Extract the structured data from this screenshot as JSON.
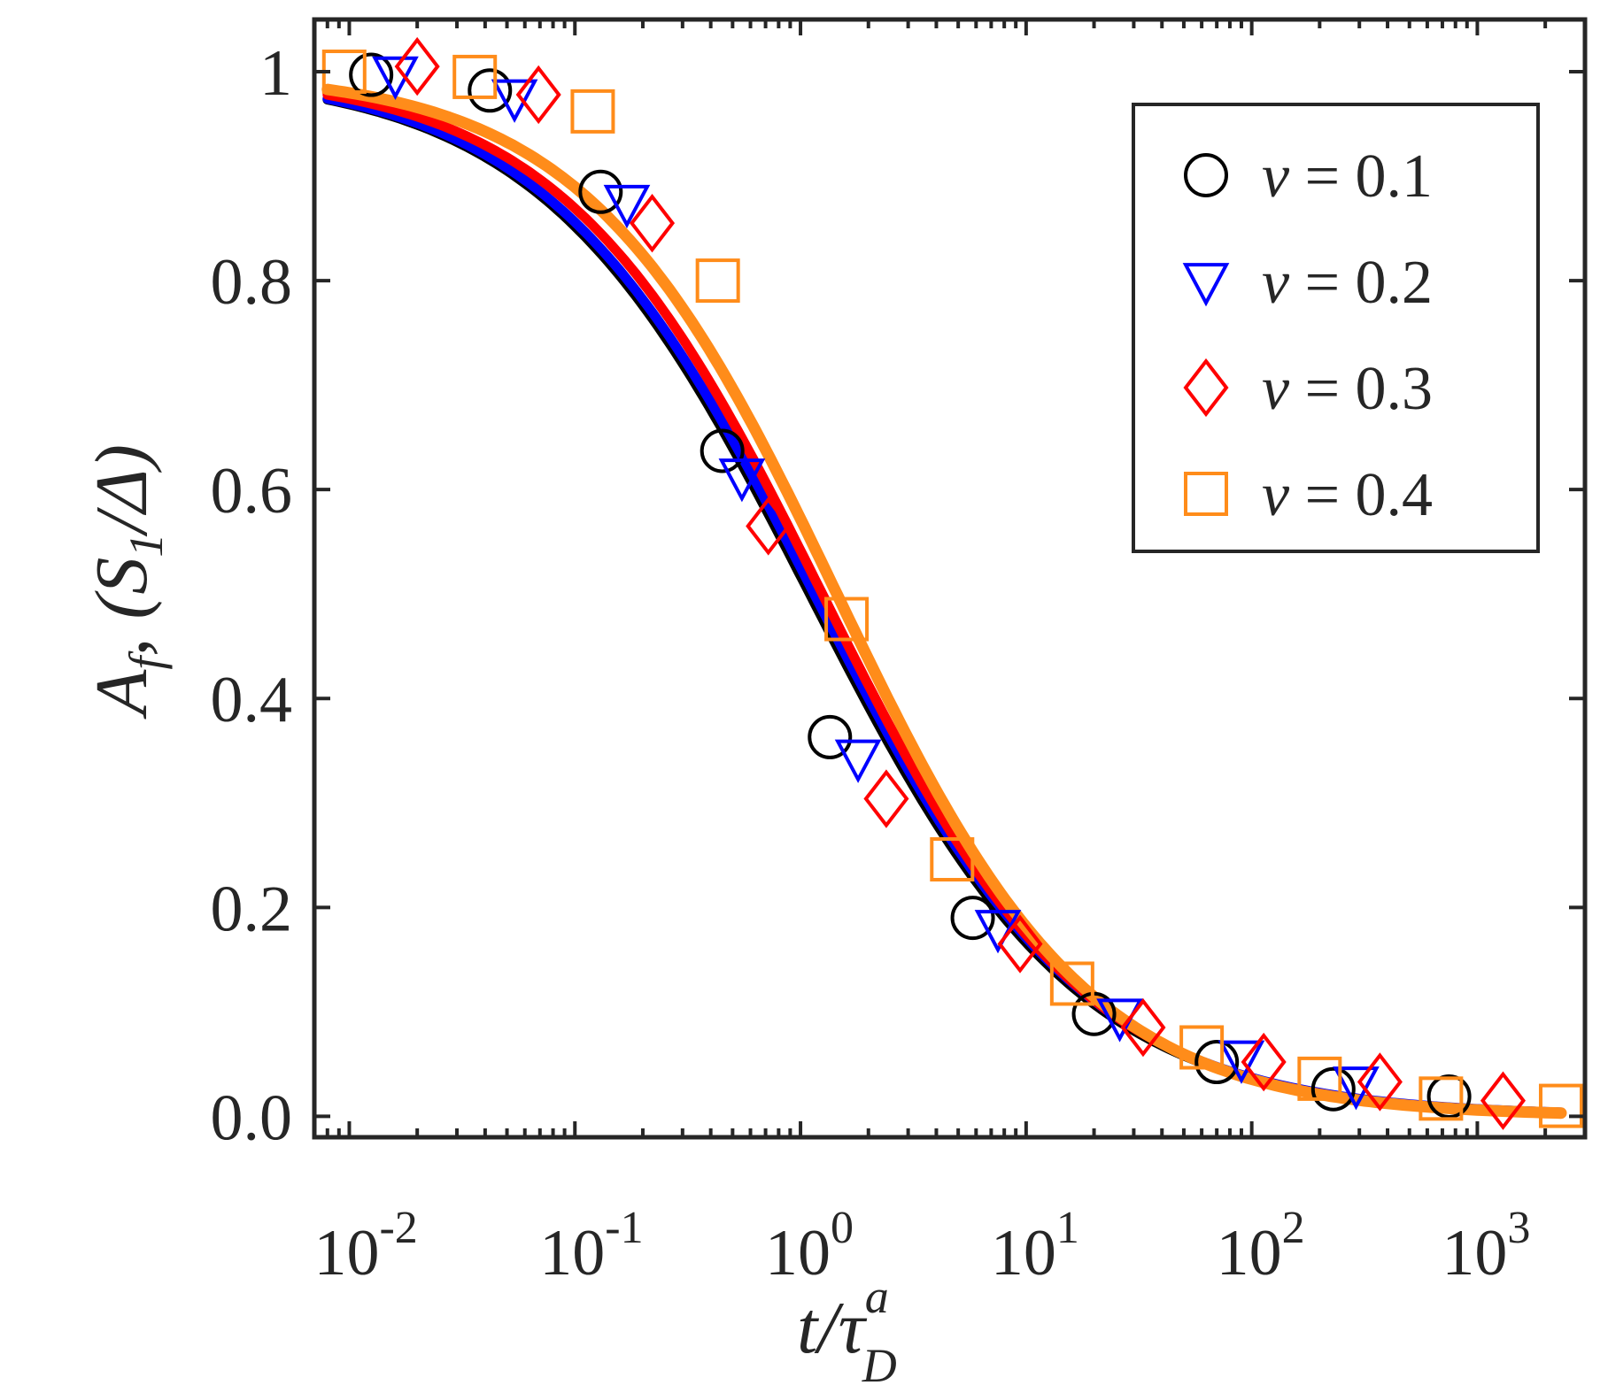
{
  "chart_data": {
    "type": "scatter",
    "title": "",
    "xlabel": "t/τ",
    "xlabel_sup": "a",
    "xlabel_sub": "D",
    "ylabel": "Âf,  (S1/Δ)",
    "ylabel_main": "A",
    "ylabel_sub": "f",
    "ylabel_mid": ",  (S",
    "ylabel_sub2": "1",
    "ylabel_end": "/Δ)",
    "xscale": "log",
    "xlim": [
      0.007,
      3000
    ],
    "ylim": [
      -0.02,
      1.05
    ],
    "x_ticks": [
      0.01,
      0.1,
      1,
      10,
      100,
      1000
    ],
    "x_tick_bases": [
      "10",
      "10",
      "10",
      "10",
      "10",
      "10"
    ],
    "x_tick_exps": [
      "-2",
      "-1",
      "0",
      "1",
      "2",
      "3"
    ],
    "y_ticks": [
      0,
      0.2,
      0.4,
      0.6,
      0.8,
      1
    ],
    "y_tick_labels": [
      "0.0",
      "0.2",
      "0.4",
      "0.6",
      "0.8",
      "1"
    ],
    "grid": false,
    "legend_position": "top-right",
    "series": [
      {
        "name": "ν = 0.1",
        "legend_symbol": "ν",
        "legend_value": "= 0.1",
        "color": "#000000",
        "marker": "circle",
        "fit_tau": 1.1,
        "fit_n": 0.73,
        "x": [
          0.0125,
          0.042,
          0.13,
          0.45,
          1.35,
          5.8,
          20,
          70,
          230,
          750
        ],
        "y": [
          0.997,
          0.982,
          0.885,
          0.637,
          0.363,
          0.19,
          0.098,
          0.052,
          0.026,
          0.019
        ]
      },
      {
        "name": "ν = 0.2",
        "legend_symbol": "ν",
        "legend_value": "= 0.2",
        "color": "#0000ff",
        "marker": "triangle-down",
        "fit_tau": 1.15,
        "fit_n": 0.73,
        "x": [
          0.016,
          0.054,
          0.17,
          0.55,
          1.8,
          7.5,
          26,
          90,
          290
        ],
        "y": [
          0.997,
          0.975,
          0.874,
          0.612,
          0.343,
          0.18,
          0.095,
          0.055,
          0.03
        ]
      },
      {
        "name": "ν = 0.3",
        "legend_symbol": "ν",
        "legend_value": "= 0.3",
        "color": "#ff0000",
        "marker": "diamond",
        "fit_tau": 1.25,
        "fit_n": 0.75,
        "x": [
          0.02,
          0.069,
          0.22,
          0.72,
          2.4,
          9.4,
          33,
          113,
          370,
          1300
        ],
        "y": [
          1.005,
          0.978,
          0.855,
          0.565,
          0.304,
          0.165,
          0.085,
          0.052,
          0.033,
          0.015
        ]
      },
      {
        "name": "ν = 0.4",
        "legend_symbol": "ν",
        "legend_value": "= 0.4",
        "color": "#ff8c1a",
        "marker": "square",
        "fit_tau": 1.45,
        "fit_n": 0.78,
        "x": [
          0.0095,
          0.036,
          0.12,
          0.43,
          1.6,
          4.7,
          16,
          60,
          200,
          690,
          2350
        ],
        "y": [
          1.0,
          0.995,
          0.962,
          0.8,
          0.476,
          0.246,
          0.127,
          0.066,
          0.036,
          0.017,
          0.01
        ]
      }
    ]
  }
}
